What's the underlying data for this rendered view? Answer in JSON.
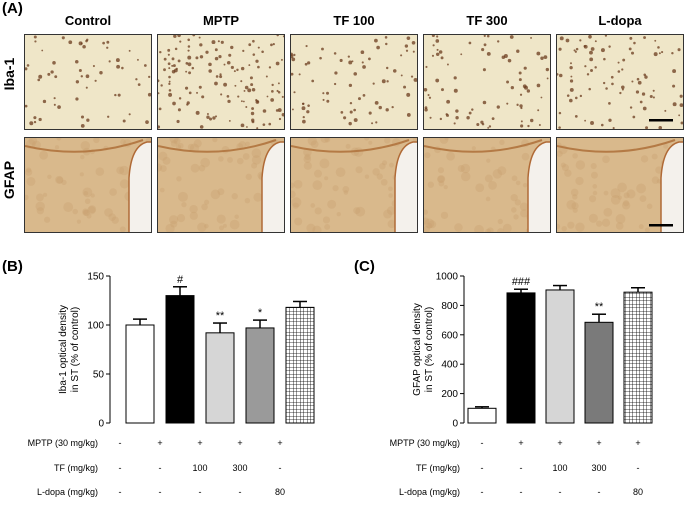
{
  "panel_a": {
    "letter": "(A)",
    "columns": [
      "Control",
      "MPTP",
      "TF 100",
      "TF 300",
      "L-dopa"
    ],
    "rows": [
      "Iba-1",
      "GFAP"
    ]
  },
  "panel_b": {
    "letter": "(B)"
  },
  "panel_c": {
    "letter": "(C)"
  },
  "colors": {
    "control": "#ffffff",
    "mptp": "#000000",
    "tf100": "#d6d6d6",
    "tf300": "#9a9a9a",
    "tf300_c": "#7a7a7a",
    "ldopa_pattern": "#000000",
    "tissue_iba": "#efe6c8",
    "tissue_gfap": "#d9b98c"
  },
  "chart_data": [
    {
      "type": "bar",
      "title": "",
      "ylabel": "Iba-1 optical density\nin ST (% of control)",
      "ylim": [
        0,
        150
      ],
      "yticks": [
        "0",
        "50",
        "100",
        "150"
      ],
      "categories": [
        "Control",
        "MPTP",
        "TF 100",
        "TF 300",
        "L-dopa"
      ],
      "values": [
        100,
        130,
        92,
        97,
        118
      ],
      "errors": [
        6,
        9,
        10,
        8,
        6
      ],
      "annotations": [
        "",
        "#",
        "**",
        "*",
        ""
      ]
    },
    {
      "type": "bar",
      "title": "",
      "ylabel": "GFAP optical density\nin ST (% of control)",
      "ylim": [
        0,
        1000
      ],
      "yticks": [
        "0",
        "200",
        "400",
        "600",
        "800",
        "1000"
      ],
      "categories": [
        "Control",
        "MPTP",
        "TF 100",
        "TF 300",
        "L-dopa"
      ],
      "values": [
        100,
        885,
        905,
        685,
        890
      ],
      "errors": [
        10,
        25,
        30,
        55,
        30
      ],
      "annotations": [
        "",
        "###",
        "",
        "**",
        ""
      ]
    }
  ],
  "table": {
    "rows": [
      {
        "label": "MPTP (30 mg/kg)",
        "values": [
          "-",
          "+",
          "+",
          "+",
          "+"
        ]
      },
      {
        "label": "TF (mg/kg)",
        "values": [
          "-",
          "-",
          "100",
          "300",
          "-"
        ]
      },
      {
        "label": "L-dopa (mg/kg)",
        "values": [
          "-",
          "-",
          "-",
          "-",
          "80"
        ]
      }
    ]
  }
}
